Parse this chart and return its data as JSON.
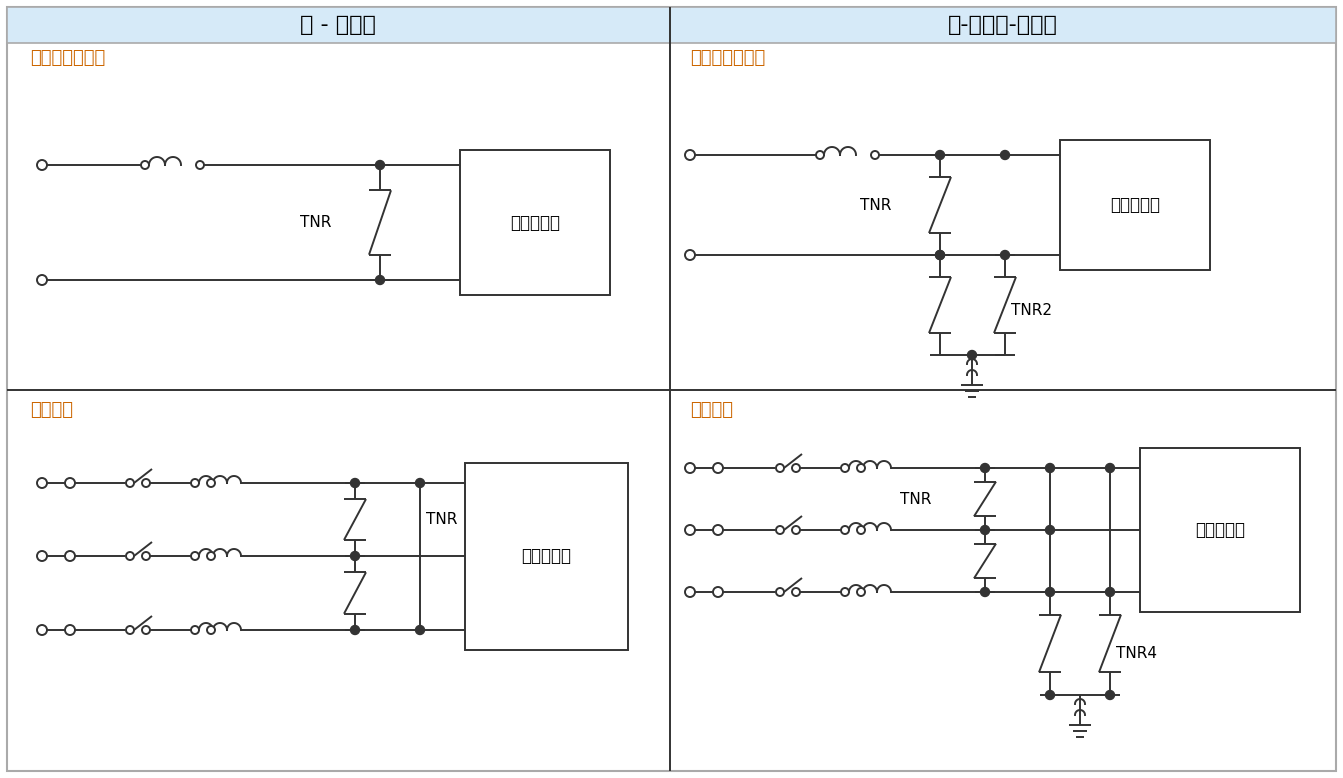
{
  "title_left": "线 - 线保护",
  "title_right": "线-线和线-地保护",
  "subtitle_tl": "直流或单相交流",
  "subtitle_tr": "直流或单相交流",
  "subtitle_bl": "三相交流",
  "subtitle_br": "三相交流",
  "label_tnr": "TNR",
  "label_tnr2": "TNR2",
  "label_tnr4": "TNR4",
  "label_box": "需保护线路",
  "header_bg": "#d6eaf8",
  "header_border": "#888888",
  "line_color": "#333333",
  "text_color_title": "#000000",
  "text_color_sub": "#cc6600",
  "fig_bg": "#ffffff",
  "fig_width": 13.43,
  "fig_height": 7.78,
  "border_color": "#aaaaaa"
}
